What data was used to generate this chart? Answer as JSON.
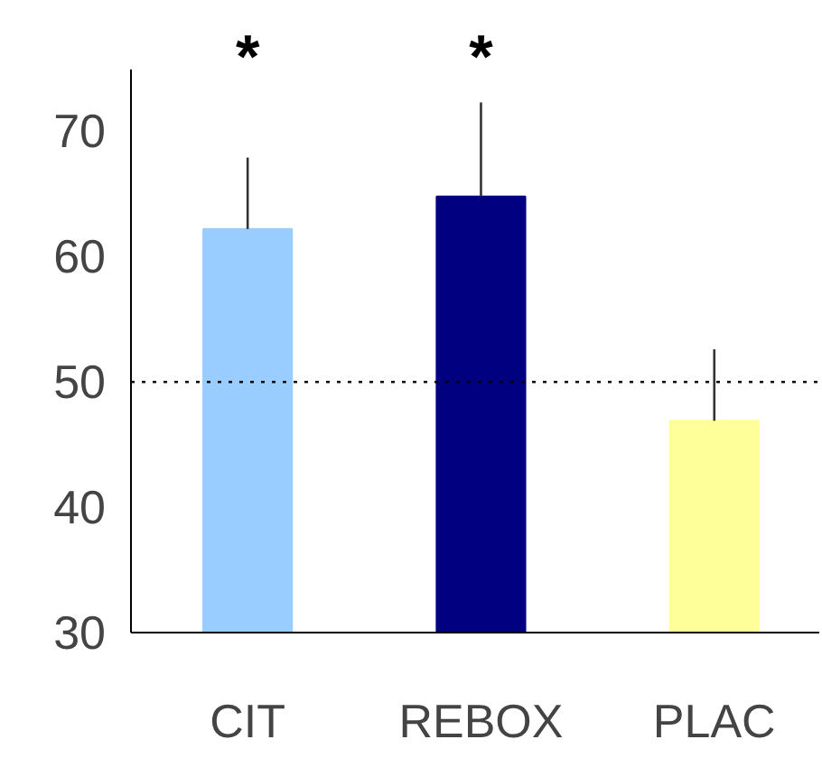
{
  "chart_data": {
    "type": "bar",
    "categories": [
      "CIT",
      "REBOX",
      "PLAC"
    ],
    "values": [
      62.2,
      64.8,
      46.9
    ],
    "colors": [
      "#99ccff",
      "#000080",
      "#ffff99"
    ],
    "errors": [
      [
        62.2,
        67.9
      ],
      [
        64.8,
        72.3
      ],
      [
        46.9,
        52.6
      ]
    ],
    "ylim": [
      30,
      75
    ],
    "yticks": [
      30,
      40,
      50,
      60,
      70
    ],
    "ref_lines": [
      {
        "axis": "y",
        "value": 50,
        "color": "#000000",
        "line_style": "dotted"
      }
    ],
    "annotations": [
      "*",
      "*"
    ],
    "grid": false
  }
}
